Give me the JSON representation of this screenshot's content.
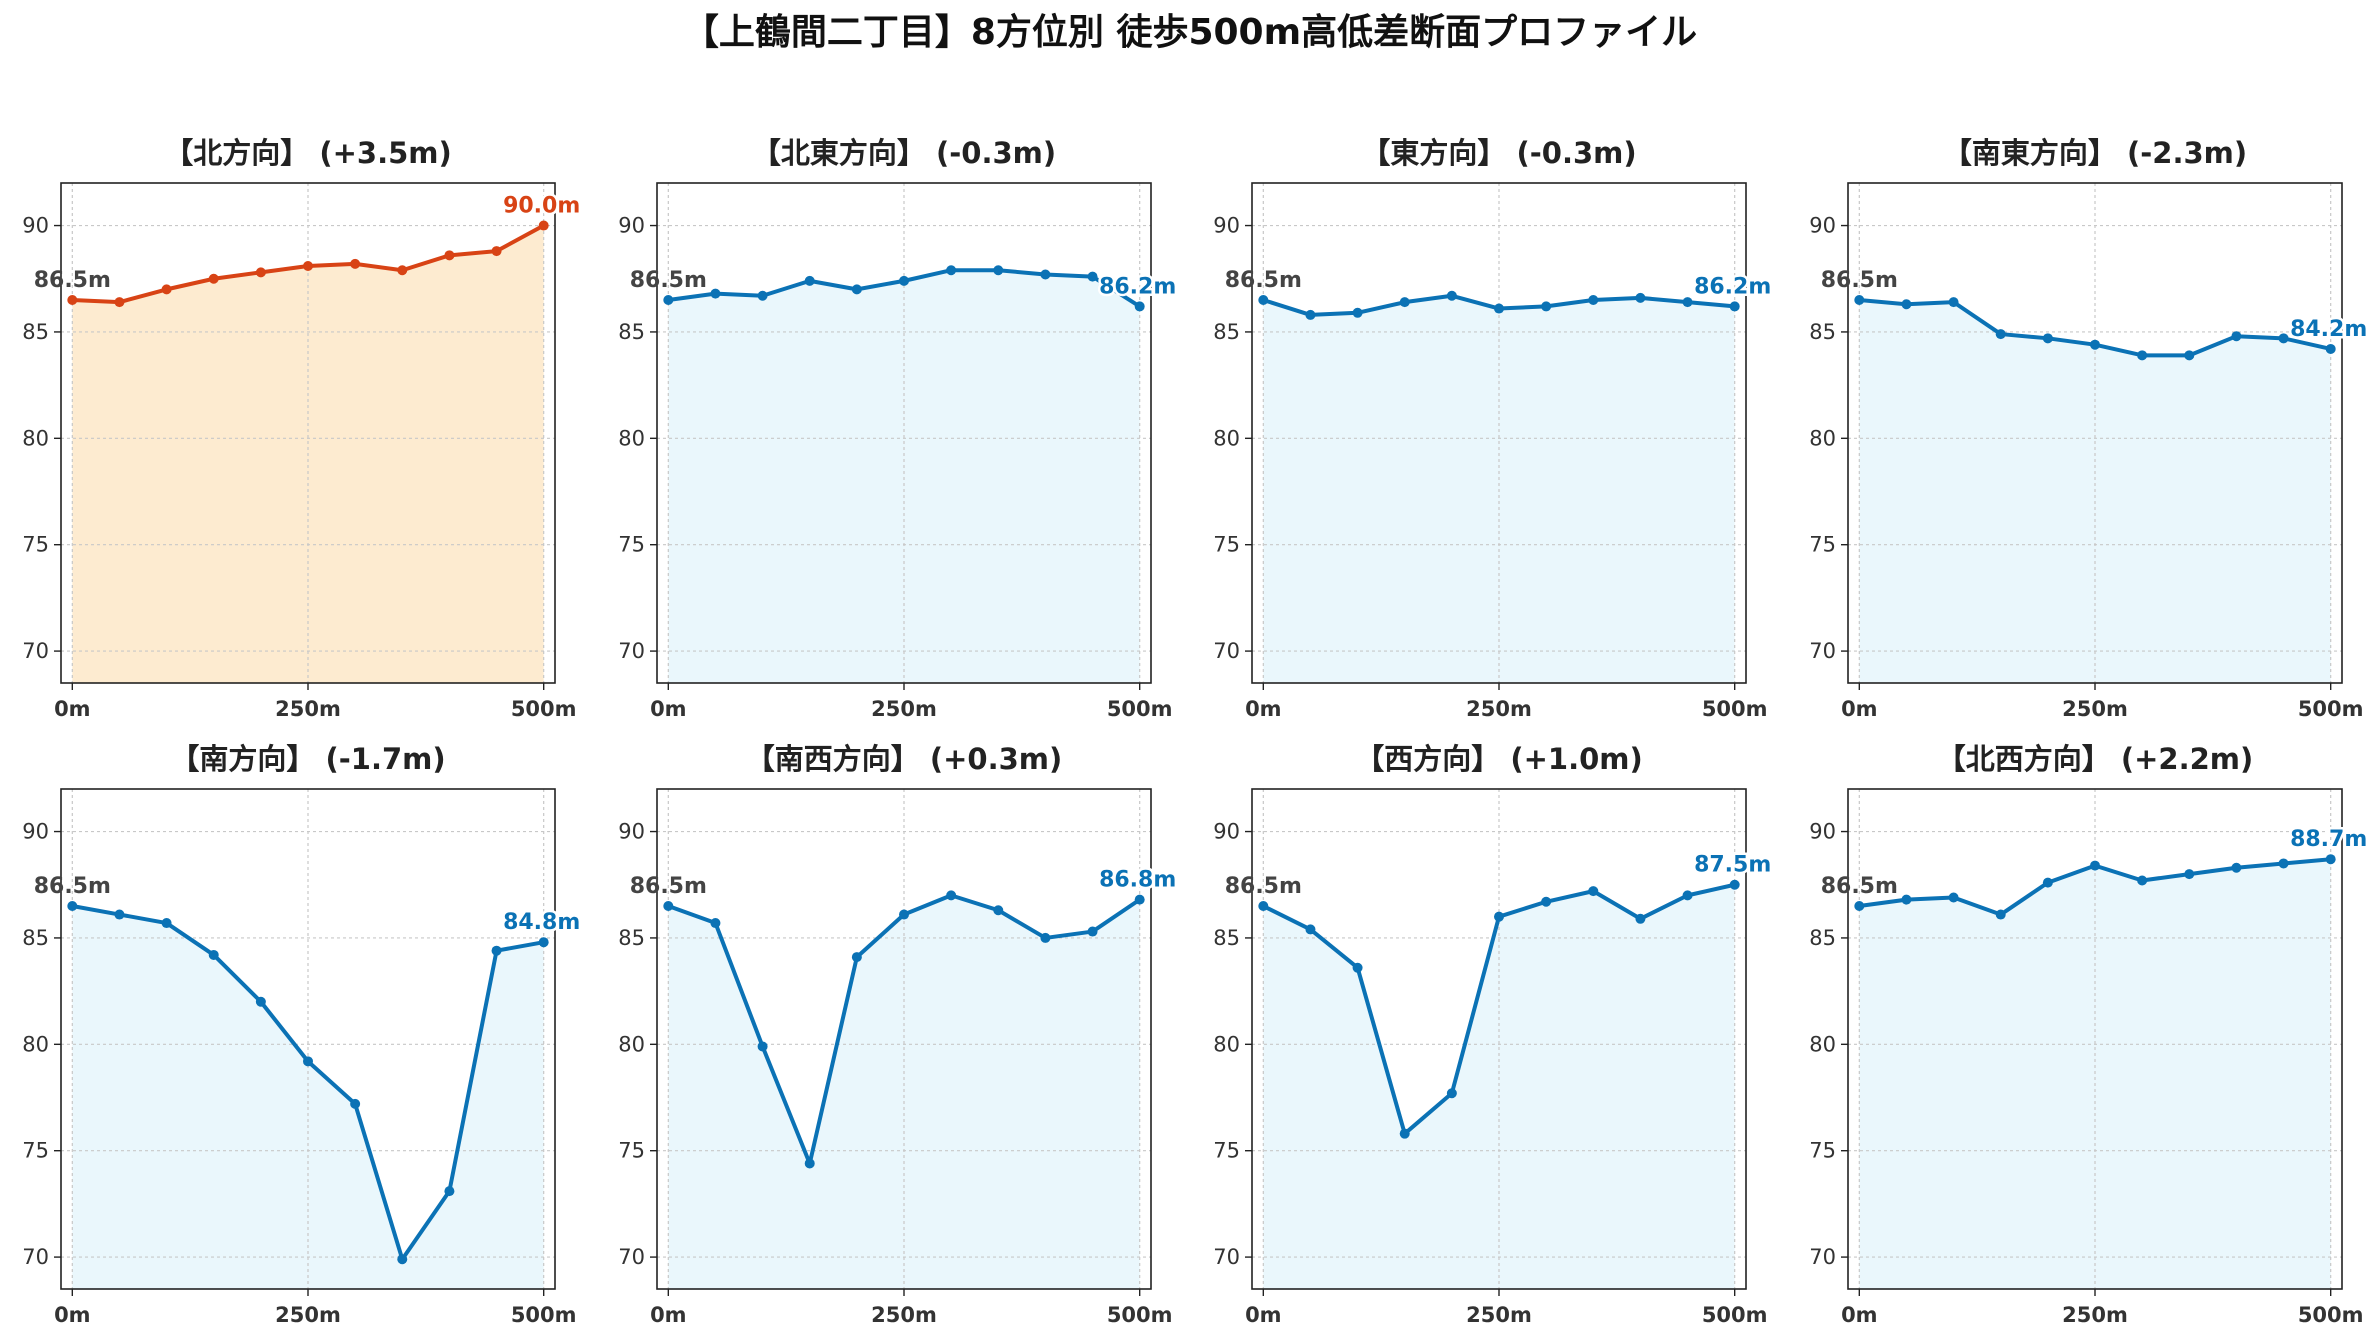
{
  "title": "【上鶴間二丁目】8方位別 徒歩500m高低差断面プロファイル",
  "colors": {
    "up_line": "#d84315",
    "up_fill": "#fdebd0",
    "down_line": "#0b72b5",
    "down_fill": "#eaf7fc",
    "start_label": "#444444"
  },
  "chart_data": [
    {
      "type": "line",
      "title": "【北方向】 (+3.5m)",
      "trend": "up",
      "x": [
        0,
        50,
        100,
        150,
        200,
        250,
        300,
        350,
        400,
        450,
        500
      ],
      "y": [
        86.5,
        86.4,
        87.0,
        87.5,
        87.8,
        88.1,
        88.2,
        87.9,
        88.6,
        88.8,
        90.0
      ],
      "ylim": [
        68.5,
        92
      ],
      "xlim": [
        -12,
        512
      ],
      "xticks": [
        0,
        250,
        500
      ],
      "xtick_labels": [
        "0m",
        "250m",
        "500m"
      ],
      "yticks": [
        70,
        75,
        80,
        85,
        90
      ],
      "grid": true,
      "start_label": "86.5m",
      "end_label": "90.0m"
    },
    {
      "type": "line",
      "title": "【北東方向】 (-0.3m)",
      "trend": "down",
      "x": [
        0,
        50,
        100,
        150,
        200,
        250,
        300,
        350,
        400,
        450,
        500
      ],
      "y": [
        86.5,
        86.8,
        86.7,
        87.4,
        87.0,
        87.4,
        87.9,
        87.9,
        87.7,
        87.6,
        86.2
      ],
      "ylim": [
        68.5,
        92
      ],
      "xlim": [
        -12,
        512
      ],
      "xticks": [
        0,
        250,
        500
      ],
      "xtick_labels": [
        "0m",
        "250m",
        "500m"
      ],
      "yticks": [
        70,
        75,
        80,
        85,
        90
      ],
      "grid": true,
      "start_label": "86.5m",
      "end_label": "86.2m"
    },
    {
      "type": "line",
      "title": "【東方向】 (-0.3m)",
      "trend": "down",
      "x": [
        0,
        50,
        100,
        150,
        200,
        250,
        300,
        350,
        400,
        450,
        500
      ],
      "y": [
        86.5,
        85.8,
        85.9,
        86.4,
        86.7,
        86.1,
        86.2,
        86.5,
        86.6,
        86.4,
        86.2
      ],
      "ylim": [
        68.5,
        92
      ],
      "xlim": [
        -12,
        512
      ],
      "xticks": [
        0,
        250,
        500
      ],
      "xtick_labels": [
        "0m",
        "250m",
        "500m"
      ],
      "yticks": [
        70,
        75,
        80,
        85,
        90
      ],
      "grid": true,
      "start_label": "86.5m",
      "end_label": "86.2m"
    },
    {
      "type": "line",
      "title": "【南東方向】 (-2.3m)",
      "trend": "down",
      "x": [
        0,
        50,
        100,
        150,
        200,
        250,
        300,
        350,
        400,
        450,
        500
      ],
      "y": [
        86.5,
        86.3,
        86.4,
        84.9,
        84.7,
        84.4,
        83.9,
        83.9,
        84.8,
        84.7,
        84.2
      ],
      "ylim": [
        68.5,
        92
      ],
      "xlim": [
        -12,
        512
      ],
      "xticks": [
        0,
        250,
        500
      ],
      "xtick_labels": [
        "0m",
        "250m",
        "500m"
      ],
      "yticks": [
        70,
        75,
        80,
        85,
        90
      ],
      "grid": true,
      "start_label": "86.5m",
      "end_label": "84.2m"
    },
    {
      "type": "line",
      "title": "【南方向】 (-1.7m)",
      "trend": "down",
      "x": [
        0,
        50,
        100,
        150,
        200,
        250,
        300,
        350,
        400,
        450,
        500
      ],
      "y": [
        86.5,
        86.1,
        85.7,
        84.2,
        82.0,
        79.2,
        77.2,
        69.9,
        73.1,
        84.4,
        84.8
      ],
      "ylim": [
        68.5,
        92
      ],
      "xlim": [
        -12,
        512
      ],
      "xticks": [
        0,
        250,
        500
      ],
      "xtick_labels": [
        "0m",
        "250m",
        "500m"
      ],
      "yticks": [
        70,
        75,
        80,
        85,
        90
      ],
      "grid": true,
      "start_label": "86.5m",
      "end_label": "84.8m"
    },
    {
      "type": "line",
      "title": "【南西方向】 (+0.3m)",
      "trend": "down",
      "x": [
        0,
        50,
        100,
        150,
        200,
        250,
        300,
        350,
        400,
        450,
        500
      ],
      "y": [
        86.5,
        85.7,
        79.9,
        74.4,
        84.1,
        86.1,
        87.0,
        86.3,
        85.0,
        85.3,
        86.8
      ],
      "ylim": [
        68.5,
        92
      ],
      "xlim": [
        -12,
        512
      ],
      "xticks": [
        0,
        250,
        500
      ],
      "xtick_labels": [
        "0m",
        "250m",
        "500m"
      ],
      "yticks": [
        70,
        75,
        80,
        85,
        90
      ],
      "grid": true,
      "start_label": "86.5m",
      "end_label": "86.8m"
    },
    {
      "type": "line",
      "title": "【西方向】 (+1.0m)",
      "trend": "down",
      "x": [
        0,
        50,
        100,
        150,
        200,
        250,
        300,
        350,
        400,
        450,
        500
      ],
      "y": [
        86.5,
        85.4,
        83.6,
        75.8,
        77.7,
        86.0,
        86.7,
        87.2,
        85.9,
        87.0,
        87.5
      ],
      "ylim": [
        68.5,
        92
      ],
      "xlim": [
        -12,
        512
      ],
      "xticks": [
        0,
        250,
        500
      ],
      "xtick_labels": [
        "0m",
        "250m",
        "500m"
      ],
      "yticks": [
        70,
        75,
        80,
        85,
        90
      ],
      "grid": true,
      "start_label": "86.5m",
      "end_label": "87.5m"
    },
    {
      "type": "line",
      "title": "【北西方向】 (+2.2m)",
      "trend": "down",
      "x": [
        0,
        50,
        100,
        150,
        200,
        250,
        300,
        350,
        400,
        450,
        500
      ],
      "y": [
        86.5,
        86.8,
        86.9,
        86.1,
        87.6,
        88.4,
        87.7,
        88.0,
        88.3,
        88.5,
        88.7
      ],
      "ylim": [
        68.5,
        92
      ],
      "xlim": [
        -12,
        512
      ],
      "xticks": [
        0,
        250,
        500
      ],
      "xtick_labels": [
        "0m",
        "250m",
        "500m"
      ],
      "yticks": [
        70,
        75,
        80,
        85,
        90
      ],
      "grid": true,
      "start_label": "86.5m",
      "end_label": "88.7m"
    }
  ]
}
